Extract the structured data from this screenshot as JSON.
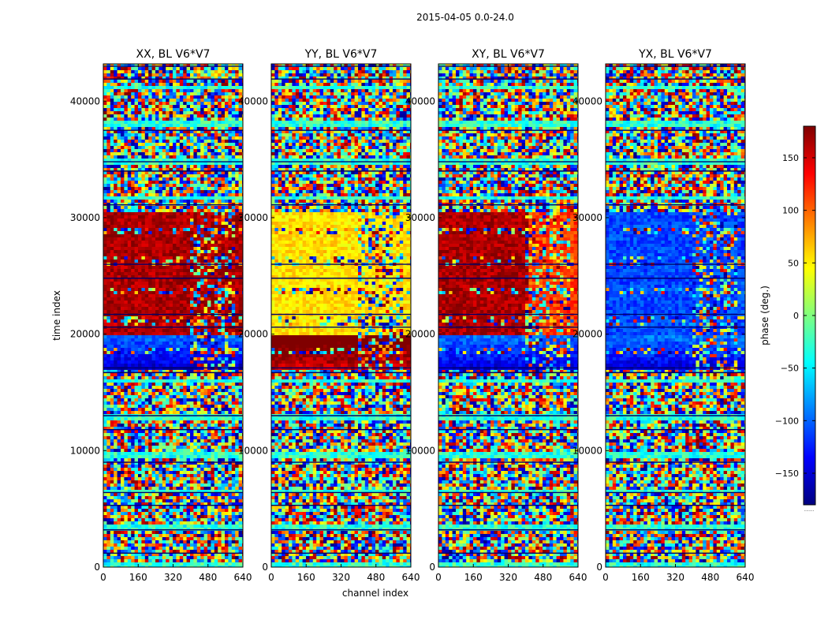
{
  "chart_data": {
    "type": "heatmap",
    "suptitle": "2015-04-05 0.0-24.0",
    "xlabel": "channel index",
    "ylabel": "time index",
    "xlim": [
      0,
      640
    ],
    "ylim": [
      0,
      43200
    ],
    "xticks": [
      0,
      160,
      320,
      480,
      640
    ],
    "yticks": [
      0,
      10000,
      20000,
      30000,
      40000
    ],
    "colormap": "jet",
    "colorbar": {
      "label": "phase (deg.)",
      "range": [
        -180,
        180
      ],
      "ticks": [
        150,
        100,
        50,
        0,
        -50,
        -100,
        -150
      ],
      "tick_labels": [
        "150",
        "100",
        "50",
        "0",
        "−50",
        "−100",
        "−150"
      ],
      "footer_text": "....."
    },
    "panels": [
      {
        "title": "XX, BL V6*V7",
        "base_phase_left": 165,
        "base_phase_right": 165,
        "low_band_phase": -155
      },
      {
        "title": "YY, BL V6*V7",
        "base_phase_left": 55,
        "base_phase_right": 55,
        "low_band_phase": 150
      },
      {
        "title": "XY, BL V6*V7",
        "base_phase_left": 165,
        "base_phase_right": 115,
        "low_band_phase": -150
      },
      {
        "title": "YX, BL V6*V7",
        "base_phase_left": -110,
        "base_phase_right": -110,
        "low_band_phase": -150
      }
    ],
    "coherent_time_range": [
      17000,
      30500
    ],
    "flagged_time_rows": [
      1200,
      3200,
      5300,
      6400,
      9000,
      11800,
      13000,
      16700,
      17100,
      20600,
      21700,
      24800,
      26000,
      31100,
      34000,
      34800,
      37500,
      41900,
      43000
    ]
  }
}
